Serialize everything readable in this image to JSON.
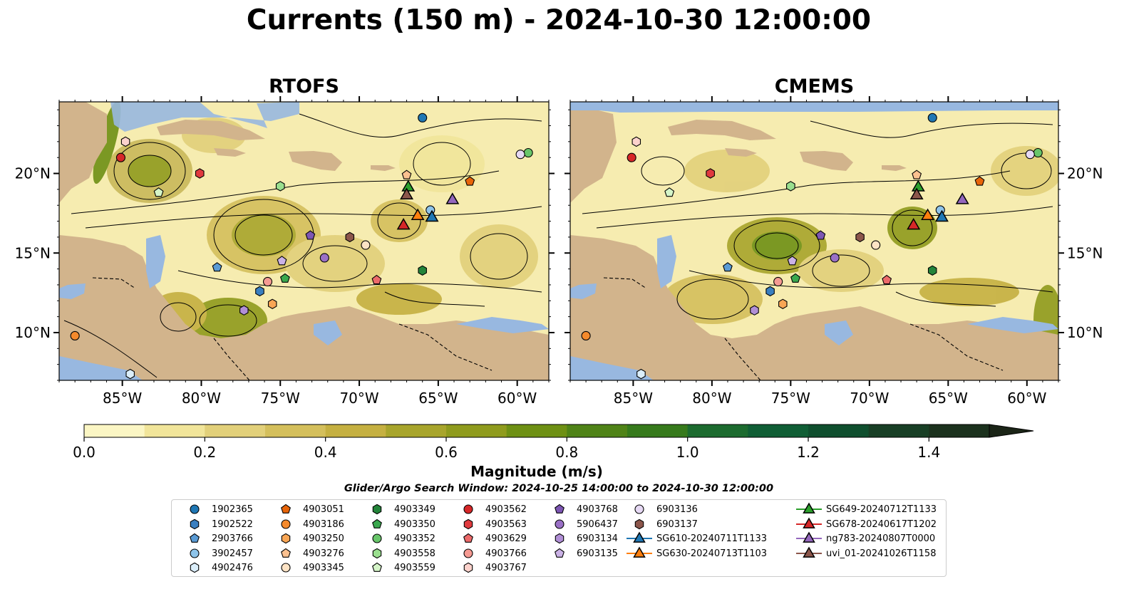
{
  "title": "Currents (150 m) - 2024-10-30 12:00:00",
  "panels": [
    {
      "title": "RTOFS"
    },
    {
      "title": "CMEMS"
    }
  ],
  "axes": {
    "lon_labels": [
      "85°W",
      "80°W",
      "75°W",
      "70°W",
      "65°W",
      "60°W"
    ],
    "lon_values": [
      -85,
      -80,
      -75,
      -70,
      -65,
      -60
    ],
    "lat_labels": [
      "20°N",
      "15°N",
      "10°N"
    ],
    "lat_values": [
      20,
      15,
      10
    ],
    "lon_range": [
      -89,
      -58
    ],
    "lat_range": [
      7,
      24.5
    ]
  },
  "colorbar": {
    "label": "Magnitude (m/s)",
    "tick_labels": [
      "0.0",
      "0.2",
      "0.4",
      "0.6",
      "0.8",
      "1.0",
      "1.2",
      "1.4"
    ],
    "tick_values": [
      0,
      0.2,
      0.4,
      0.6,
      0.8,
      1.0,
      1.2,
      1.4
    ],
    "range": [
      0,
      1.5
    ],
    "colors": [
      "#fbf6c4",
      "#f1e59a",
      "#e2d07a",
      "#d4bf5c",
      "#c5b041",
      "#a8a52c",
      "#8f9b1d",
      "#6e9014",
      "#4f8317",
      "#367a1c",
      "#1c6b2f",
      "#105e35",
      "#0f4f2e",
      "#183f25",
      "#1b311d",
      "#1b2517"
    ]
  },
  "search_window": "Glider/Argo Search Window: 2024-10-25 14:00:00 to 2024-10-30 12:00:00",
  "colors": {
    "land": "#d2b48c",
    "water": "#98b8e0",
    "streamline": "#000000"
  },
  "legend": [
    {
      "label": "1902365",
      "marker": "circle",
      "color": "#1f77b4"
    },
    {
      "label": "1902522",
      "marker": "hexagon",
      "color": "#3a7fc0"
    },
    {
      "label": "2903766",
      "marker": "pentagon",
      "color": "#5a9bd5"
    },
    {
      "label": "3902457",
      "marker": "circle",
      "color": "#8ec4ea"
    },
    {
      "label": "4902476",
      "marker": "hexagon",
      "color": "#dbeefa"
    },
    {
      "label": "4903051",
      "marker": "pentagon",
      "color": "#e8650a"
    },
    {
      "label": "4903186",
      "marker": "circle",
      "color": "#f58a2c"
    },
    {
      "label": "4903250",
      "marker": "hexagon",
      "color": "#f9a655"
    },
    {
      "label": "4903276",
      "marker": "pentagon",
      "color": "#fbc190"
    },
    {
      "label": "4903345",
      "marker": "circle",
      "color": "#fde3c5"
    },
    {
      "label": "4903349",
      "marker": "hexagon",
      "color": "#23843a"
    },
    {
      "label": "4903350",
      "marker": "pentagon",
      "color": "#3aa84e"
    },
    {
      "label": "4903352",
      "marker": "circle",
      "color": "#68c66a"
    },
    {
      "label": "4903558",
      "marker": "hexagon",
      "color": "#9adf8f"
    },
    {
      "label": "4903559",
      "marker": "pentagon",
      "color": "#d5f5c8"
    },
    {
      "label": "4903562",
      "marker": "circle",
      "color": "#d62728"
    },
    {
      "label": "4903563",
      "marker": "hexagon",
      "color": "#e03a3e"
    },
    {
      "label": "4903629",
      "marker": "pentagon",
      "color": "#ec6a6a"
    },
    {
      "label": "4903766",
      "marker": "circle",
      "color": "#f59a92"
    },
    {
      "label": "4903767",
      "marker": "hexagon",
      "color": "#fcd2cc"
    },
    {
      "label": "4903768",
      "marker": "pentagon",
      "color": "#7d56b3"
    },
    {
      "label": "5906437",
      "marker": "circle",
      "color": "#9a70c6"
    },
    {
      "label": "6903134",
      "marker": "hexagon",
      "color": "#b18fd6"
    },
    {
      "label": "6903135",
      "marker": "pentagon",
      "color": "#cbb2e6"
    },
    {
      "label": "6903136",
      "marker": "circle",
      "color": "#e6d9f4"
    },
    {
      "label": "6903137",
      "marker": "hexagon",
      "color": "#8c564b"
    },
    {
      "label": "SG610-20240711T1133",
      "marker": "triangle",
      "color": "#1f77b4"
    },
    {
      "label": "SG630-20240713T1103",
      "marker": "triangle",
      "color": "#ff7f0e"
    },
    {
      "label": "SG649-20240712T1133",
      "marker": "triangle",
      "color": "#2ca02c"
    },
    {
      "label": "SG678-20240617T1202",
      "marker": "triangle",
      "color": "#d62728"
    },
    {
      "label": "ng783-20240807T0000",
      "marker": "triangle",
      "color": "#9467bd"
    },
    {
      "label": "uvi_01-20241026T1158",
      "marker": "triangle",
      "color": "#8c564b"
    }
  ],
  "platforms": [
    {
      "id": "1902365",
      "lon": -66.0,
      "lat": 23.5
    },
    {
      "id": "1902522",
      "lon": -76.3,
      "lat": 12.6
    },
    {
      "id": "2903766",
      "lon": -79.0,
      "lat": 14.1
    },
    {
      "id": "3902457",
      "lon": -65.5,
      "lat": 17.7
    },
    {
      "id": "4902476",
      "lon": -84.5,
      "lat": 7.4
    },
    {
      "id": "4903051",
      "lon": -63.0,
      "lat": 19.5
    },
    {
      "id": "4903186",
      "lon": -88.0,
      "lat": 9.8
    },
    {
      "id": "4903250",
      "lon": -75.5,
      "lat": 11.8
    },
    {
      "id": "4903276",
      "lon": -67.0,
      "lat": 19.9
    },
    {
      "id": "4903345",
      "lon": -69.6,
      "lat": 15.5
    },
    {
      "id": "4903349",
      "lon": -66.0,
      "lat": 13.9
    },
    {
      "id": "4903350",
      "lon": -74.7,
      "lat": 13.4
    },
    {
      "id": "4903352",
      "lon": -59.3,
      "lat": 21.3
    },
    {
      "id": "4903558",
      "lon": -75.0,
      "lat": 19.2
    },
    {
      "id": "4903559",
      "lon": -82.7,
      "lat": 18.8
    },
    {
      "id": "4903562",
      "lon": -85.1,
      "lat": 21.0
    },
    {
      "id": "4903563",
      "lon": -80.1,
      "lat": 20.0
    },
    {
      "id": "4903629",
      "lon": -68.9,
      "lat": 13.3
    },
    {
      "id": "4903766",
      "lon": -75.8,
      "lat": 13.2
    },
    {
      "id": "4903767",
      "lon": -84.8,
      "lat": 22.0
    },
    {
      "id": "4903768",
      "lon": -73.1,
      "lat": 16.1
    },
    {
      "id": "5906437",
      "lon": -72.2,
      "lat": 14.7
    },
    {
      "id": "6903134",
      "lon": -77.3,
      "lat": 11.4
    },
    {
      "id": "6903135",
      "lon": -74.9,
      "lat": 14.5
    },
    {
      "id": "6903136",
      "lon": -59.8,
      "lat": 21.2
    },
    {
      "id": "6903137",
      "lon": -70.6,
      "lat": 16.0
    },
    {
      "id": "SG610-20240711T1133",
      "lon": -65.4,
      "lat": 17.3
    },
    {
      "id": "SG630-20240713T1103",
      "lon": -66.3,
      "lat": 17.4
    },
    {
      "id": "SG649-20240712T1133",
      "lon": -66.9,
      "lat": 19.2
    },
    {
      "id": "SG678-20240617T1202",
      "lon": -67.2,
      "lat": 16.8
    },
    {
      "id": "ng783-20240807T0000",
      "lon": -64.1,
      "lat": 18.4
    },
    {
      "id": "uvi_01-20241026T1158",
      "lon": -67.0,
      "lat": 18.7
    }
  ]
}
